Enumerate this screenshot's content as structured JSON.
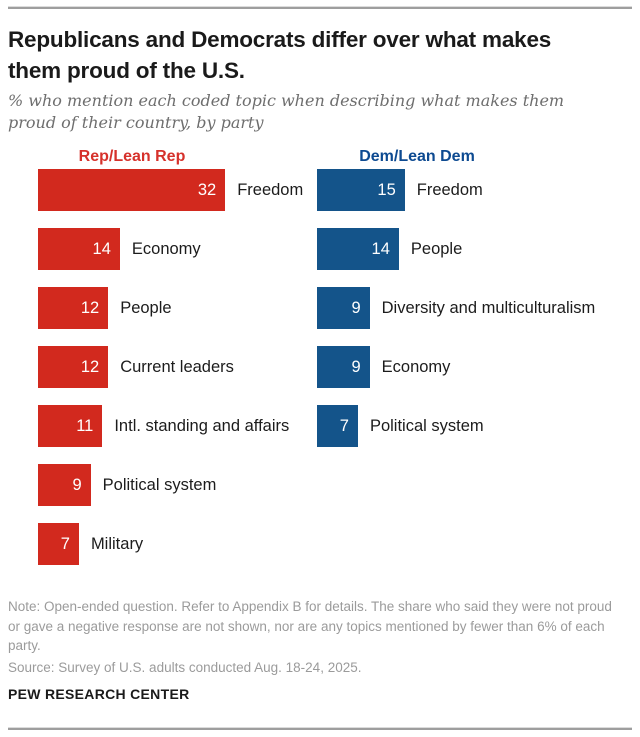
{
  "header": {
    "title": "Republicans and Democrats differ over what makes them proud of the U.S.",
    "subtitle": "% who mention each coded topic when describing what makes them proud of their country, by party"
  },
  "chart_data": {
    "type": "bar",
    "orientation": "horizontal",
    "unit": "percent",
    "xlim": [
      0,
      35
    ],
    "value_labels": "inside-right",
    "category_labels": "right-of-bar",
    "series": [
      {
        "name": "Rep/Lean Rep",
        "color": "#d2291e",
        "header_color": "#d6312b",
        "categories": [
          "Freedom",
          "Economy",
          "People",
          "Current leaders",
          "Intl. standing and affairs",
          "Political system",
          "Military"
        ],
        "values": [
          32,
          14,
          12,
          12,
          11,
          9,
          7
        ]
      },
      {
        "name": "Dem/Lean Dem",
        "color": "#14548a",
        "header_color": "#0d4a91",
        "categories": [
          "Freedom",
          "People",
          "Diversity and multiculturalism",
          "Economy",
          "Political system"
        ],
        "values": [
          15,
          14,
          9,
          9,
          7
        ]
      }
    ]
  },
  "footer": {
    "note": "Note: Open-ended question. Refer to Appendix B for details. The share who said they were not proud or gave a negative response are not shown, nor are any topics mentioned by fewer than 6% of each party.",
    "source": "Source: Survey of U.S. adults conducted Aug. 18-24, 2025.",
    "brand": "PEW RESEARCH CENTER"
  },
  "colors": {
    "rep_bar": "#d2291e",
    "dem_bar": "#14548a",
    "rep_header_text": "#d6312b",
    "dem_header_text": "#0d4a91",
    "title_text": "#1a1a1a",
    "note_text": "#9b9b9b",
    "subtitle_text": "#6e6e6e",
    "divider": "#9e9e9e"
  }
}
